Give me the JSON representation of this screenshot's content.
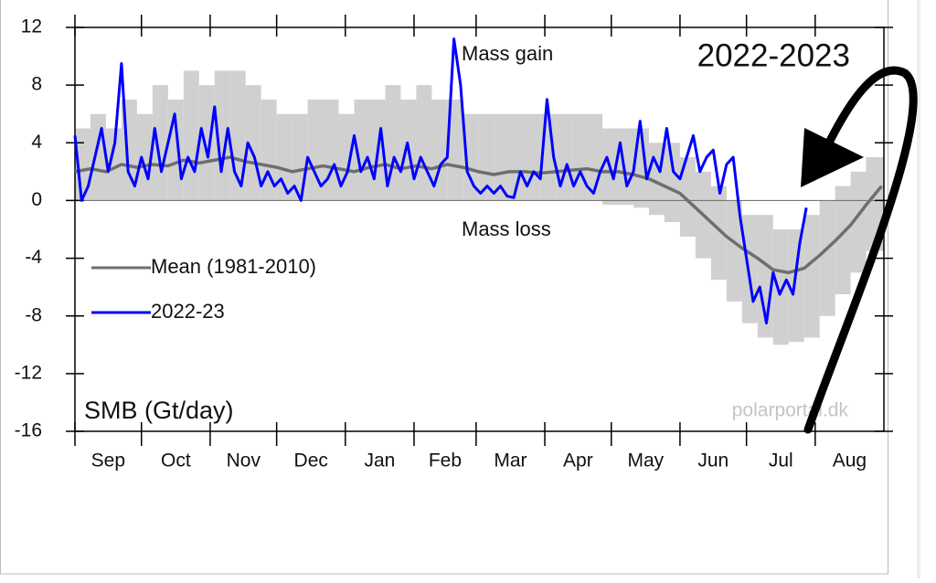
{
  "chart_data": {
    "type": "line",
    "title": "2022-2023",
    "ylabel": "SMB (Gt/day)",
    "annotations": [
      "Mass gain",
      "Mass loss"
    ],
    "credit": "polarportal.dk",
    "xlim": [
      0,
      365
    ],
    "xticks": [
      {
        "value": 0,
        "label": "Sep"
      },
      {
        "value": 30,
        "label": "Oct"
      },
      {
        "value": 61,
        "label": "Nov"
      },
      {
        "value": 91,
        "label": "Dec"
      },
      {
        "value": 122,
        "label": "Jan"
      },
      {
        "value": 153,
        "label": "Feb"
      },
      {
        "value": 181,
        "label": "Mar"
      },
      {
        "value": 212,
        "label": "Apr"
      },
      {
        "value": 242,
        "label": "May"
      },
      {
        "value": 273,
        "label": "Jun"
      },
      {
        "value": 303,
        "label": "Jul"
      },
      {
        "value": 334,
        "label": "Aug"
      }
    ],
    "ylim": [
      -16,
      12
    ],
    "yticks": [
      -16,
      -12,
      -8,
      -4,
      0,
      4,
      8,
      12
    ],
    "band": {
      "color": "#d0d0d0",
      "x": [
        0,
        7,
        14,
        21,
        28,
        35,
        42,
        49,
        56,
        63,
        70,
        77,
        84,
        91,
        98,
        105,
        112,
        119,
        126,
        133,
        140,
        147,
        154,
        161,
        168,
        175,
        182,
        189,
        196,
        203,
        210,
        217,
        224,
        231,
        238,
        245,
        252,
        259,
        266,
        273,
        280,
        287,
        294,
        301,
        308,
        315,
        322,
        329,
        336,
        343,
        350,
        357
      ],
      "upper": [
        5,
        6,
        5,
        7,
        6,
        8,
        7,
        9,
        8,
        9,
        9,
        8,
        7,
        6,
        6,
        7,
        7,
        6,
        7,
        7,
        8,
        7,
        8,
        7,
        7,
        6,
        6,
        6,
        6,
        6,
        6,
        6,
        6,
        6,
        5,
        5,
        5,
        4,
        4,
        3,
        2,
        1,
        0,
        -1,
        -1,
        -2,
        -2,
        -1,
        0,
        1,
        2,
        3
      ],
      "lower": [
        0,
        0,
        0,
        0,
        0,
        0,
        0,
        0,
        0,
        0,
        0,
        0,
        0,
        0,
        0,
        0,
        0,
        0,
        0,
        0,
        0,
        0,
        0,
        0,
        0,
        0,
        0,
        0,
        0,
        0,
        0,
        0,
        0,
        0,
        -0.3,
        -0.3,
        -0.5,
        -1,
        -1.5,
        -2.5,
        -4,
        -5.5,
        -7,
        -8.5,
        -9.5,
        -10,
        -9.8,
        -9.5,
        -8,
        -6.5,
        -5,
        -3.5
      ]
    },
    "series": [
      {
        "name": "Mean (1981-2010)",
        "color": "#6e6e6e",
        "x": [
          0,
          7,
          14,
          21,
          28,
          35,
          42,
          49,
          56,
          63,
          70,
          77,
          84,
          91,
          98,
          105,
          112,
          119,
          126,
          133,
          140,
          147,
          154,
          161,
          168,
          175,
          182,
          189,
          196,
          203,
          210,
          217,
          224,
          231,
          238,
          245,
          252,
          259,
          266,
          273,
          280,
          287,
          294,
          301,
          308,
          315,
          322,
          329,
          336,
          343,
          350,
          357,
          364
        ],
        "values": [
          2,
          2.2,
          2,
          2.5,
          2.3,
          2.5,
          2.4,
          2.8,
          2.6,
          2.8,
          3,
          2.7,
          2.5,
          2.3,
          2,
          2.2,
          2.4,
          2.2,
          2,
          2.3,
          2.5,
          2.2,
          2.4,
          2.2,
          2.5,
          2.3,
          2,
          1.8,
          2,
          2,
          1.9,
          2,
          2.1,
          2.2,
          2,
          2,
          1.8,
          1.5,
          1,
          0.5,
          -0.5,
          -1.5,
          -2.5,
          -3.3,
          -4,
          -4.8,
          -5,
          -4.7,
          -3.8,
          -2.8,
          -1.7,
          -0.3,
          1
        ]
      },
      {
        "name": "2022-23",
        "color": "#0000ff",
        "x": [
          0,
          3,
          6,
          9,
          12,
          15,
          18,
          21,
          24,
          27,
          30,
          33,
          36,
          39,
          42,
          45,
          48,
          51,
          54,
          57,
          60,
          63,
          66,
          69,
          72,
          75,
          78,
          81,
          84,
          87,
          90,
          93,
          96,
          99,
          102,
          105,
          108,
          111,
          114,
          117,
          120,
          123,
          126,
          129,
          132,
          135,
          138,
          141,
          144,
          147,
          150,
          153,
          156,
          159,
          162,
          165,
          168,
          171,
          174,
          177,
          180,
          183,
          186,
          189,
          192,
          195,
          198,
          201,
          204,
          207,
          210,
          213,
          216,
          219,
          222,
          225,
          228,
          231,
          234,
          237,
          240,
          243,
          246,
          249,
          252,
          255,
          258,
          261,
          264,
          267,
          270,
          273,
          276,
          279,
          282,
          285,
          288,
          291,
          294,
          297,
          300,
          303,
          306,
          309,
          312,
          315,
          318,
          321,
          324,
          327,
          330
        ],
        "values": [
          4.5,
          0,
          1,
          3,
          5,
          2,
          4,
          9.5,
          2,
          1,
          3,
          1.5,
          5,
          2,
          4,
          6,
          1.5,
          3,
          2,
          5,
          3,
          6.5,
          2,
          5,
          2,
          1,
          4,
          3,
          1,
          2,
          1,
          1.5,
          0.5,
          1,
          0,
          3,
          2,
          1,
          1.5,
          2.5,
          1,
          2,
          4.5,
          2,
          3,
          1.5,
          5,
          1,
          3,
          2,
          4,
          1.5,
          3,
          2,
          1,
          2.5,
          3,
          11.2,
          8,
          2,
          1,
          0.5,
          1,
          0.5,
          1,
          0.3,
          0.2,
          2,
          1,
          2,
          1.5,
          7,
          3,
          1,
          2.5,
          1,
          2,
          1,
          0.5,
          2,
          3,
          1.5,
          4,
          1,
          2,
          5.5,
          1.5,
          3,
          2,
          5,
          2,
          1.5,
          3,
          4.5,
          2,
          3,
          3.5,
          0.5,
          2.5,
          3,
          -1,
          -4,
          -7,
          -6,
          -8.5,
          -5,
          -6.5,
          -5.5,
          -6.5,
          -3,
          -0.5
        ]
      }
    ]
  }
}
